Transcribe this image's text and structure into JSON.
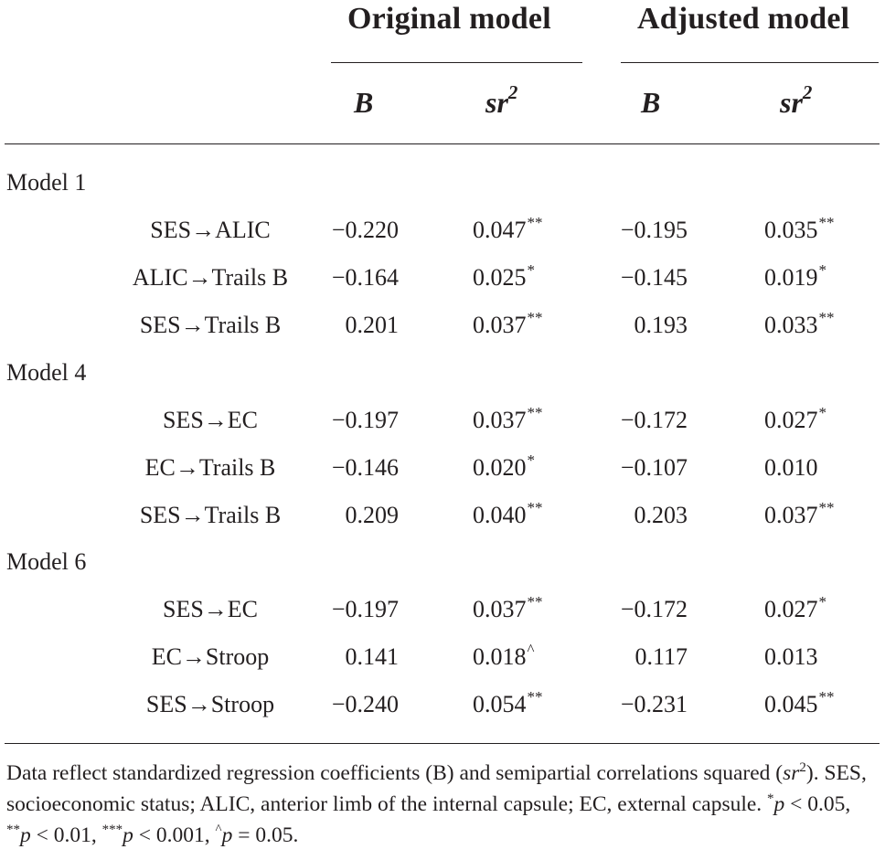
{
  "header": {
    "groups": [
      {
        "title": "Original model"
      },
      {
        "title": "Adjusted model"
      }
    ],
    "columns": {
      "b": "B",
      "sr_base": "sr",
      "sr_sup": "2"
    }
  },
  "models": [
    {
      "label": "Model 1",
      "rows": [
        {
          "path": "SES→ALIC",
          "orig_b": "−0.220",
          "orig_sr": "0.047",
          "orig_sig": "**",
          "adj_b": "−0.195",
          "adj_sr": "0.035",
          "adj_sig": "**"
        },
        {
          "path": "ALIC→Trails B",
          "orig_b": "−0.164",
          "orig_sr": "0.025",
          "orig_sig": "*",
          "adj_b": "−0.145",
          "adj_sr": "0.019",
          "adj_sig": "*"
        },
        {
          "path": "SES→Trails B",
          "orig_b": "0.201",
          "orig_sr": "0.037",
          "orig_sig": "**",
          "adj_b": "0.193",
          "adj_sr": "0.033",
          "adj_sig": "**"
        }
      ]
    },
    {
      "label": "Model 4",
      "rows": [
        {
          "path": "SES→EC",
          "orig_b": "−0.197",
          "orig_sr": "0.037",
          "orig_sig": "**",
          "adj_b": "−0.172",
          "adj_sr": "0.027",
          "adj_sig": "*"
        },
        {
          "path": "EC→Trails B",
          "orig_b": "−0.146",
          "orig_sr": "0.020",
          "orig_sig": "*",
          "adj_b": "−0.107",
          "adj_sr": "0.010",
          "adj_sig": ""
        },
        {
          "path": "SES→Trails B",
          "orig_b": "0.209",
          "orig_sr": "0.040",
          "orig_sig": "**",
          "adj_b": "0.203",
          "adj_sr": "0.037",
          "adj_sig": "**"
        }
      ]
    },
    {
      "label": "Model 6",
      "rows": [
        {
          "path": "SES→EC",
          "orig_b": "−0.197",
          "orig_sr": "0.037",
          "orig_sig": "**",
          "adj_b": "−0.172",
          "adj_sr": "0.027",
          "adj_sig": "*"
        },
        {
          "path": "EC→Stroop",
          "orig_b": "0.141",
          "orig_sr": "0.018",
          "orig_sig": "^",
          "adj_b": "0.117",
          "adj_sr": "0.013",
          "adj_sig": ""
        },
        {
          "path": "SES→Stroop",
          "orig_b": "−0.240",
          "orig_sr": "0.054",
          "orig_sig": "**",
          "adj_b": "−0.231",
          "adj_sr": "0.045",
          "adj_sig": "**"
        }
      ]
    }
  ],
  "footnote": {
    "text_1": "Data reflect standardized regression coefficients (B) and semipartial correlations squared (",
    "sr": "sr",
    "sr_sup": "2",
    "text_2": "). SES, socioeconomic status; ALIC, anterior limb of the internal capsule; EC, external capsule. ",
    "sig_1_mark": "*",
    "sig_1_text": " < 0.05, ",
    "sig_2_mark": "**",
    "sig_2_text": " < 0.01, ",
    "sig_3_mark": "***",
    "sig_3_text": " < 0.001, ",
    "sig_4_mark": "^",
    "sig_4_text": " = 0.05.",
    "p": "p"
  }
}
